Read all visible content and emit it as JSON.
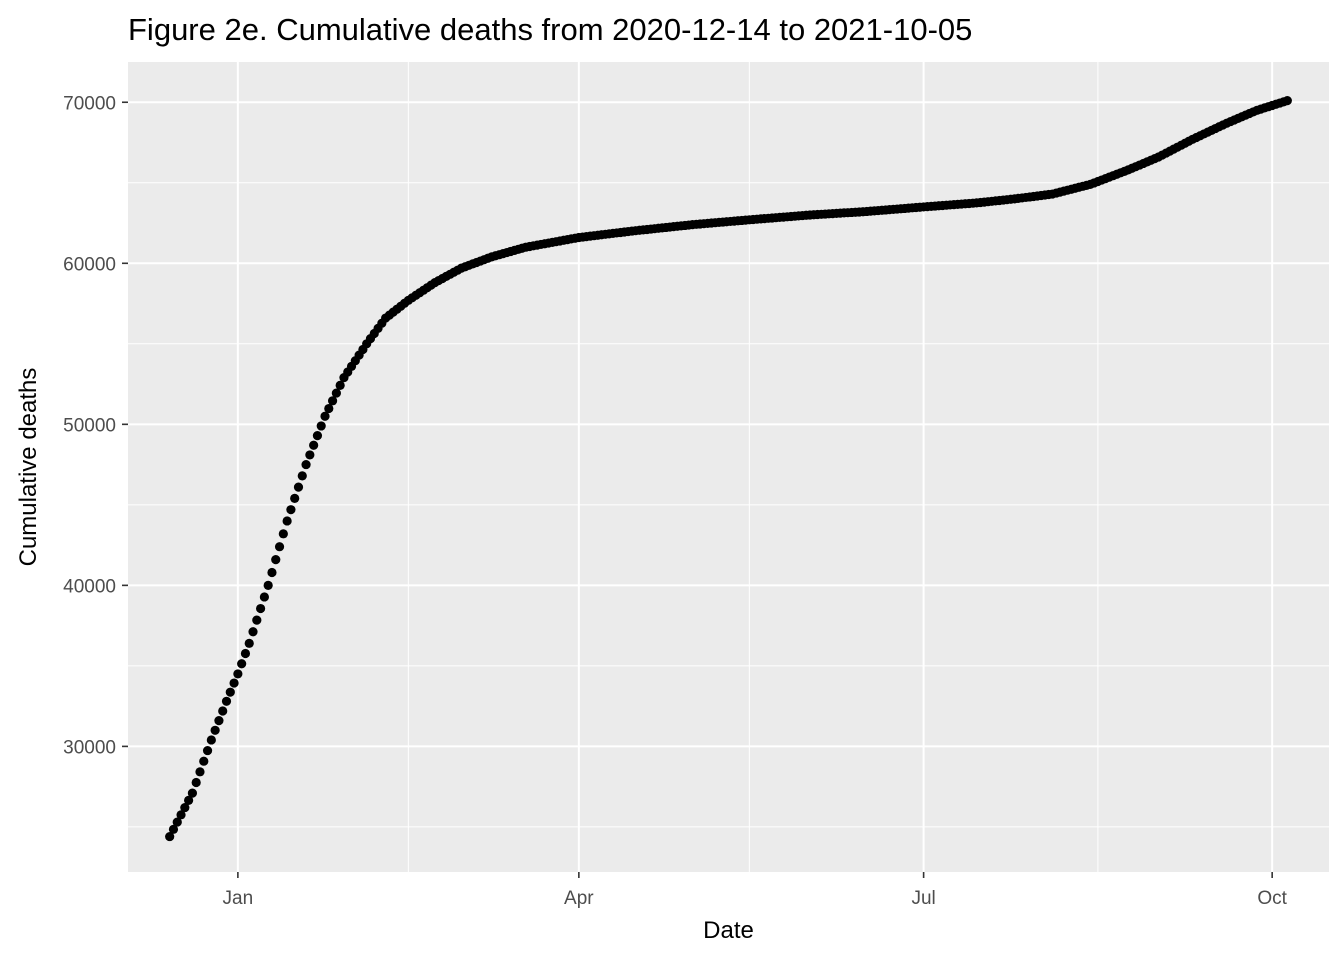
{
  "chart_data": {
    "type": "scatter",
    "title": "Figure 2e. Cumulative deaths from 2020-12-14 to 2021-10-05",
    "xlabel": "Date",
    "ylabel": "Cumulative deaths",
    "x_start": "2020-12-14",
    "x_end": "2021-10-05",
    "xlim": [
      "2020-12-03",
      "2021-10-16"
    ],
    "ylim": [
      22200,
      72500
    ],
    "x_ticks": [
      {
        "date": "2021-01-01",
        "label": "Jan"
      },
      {
        "date": "2021-04-01",
        "label": "Apr"
      },
      {
        "date": "2021-07-01",
        "label": "Jul"
      },
      {
        "date": "2021-10-01",
        "label": "Oct"
      }
    ],
    "x_minor_ticks": [
      "2021-02-15",
      "2021-05-16",
      "2021-08-16"
    ],
    "y_ticks": [
      30000,
      40000,
      50000,
      60000,
      70000
    ],
    "y_minor_ticks": [
      25000,
      35000,
      45000,
      55000,
      65000
    ],
    "grid": true,
    "colors": {
      "panel": "#ebebeb",
      "grid": "#ffffff",
      "point": "#000000"
    },
    "series": [
      {
        "name": "",
        "points": [
          {
            "date": "2020-12-14",
            "y": 24400
          },
          {
            "date": "2020-12-20",
            "y": 27100
          },
          {
            "date": "2020-12-25",
            "y": 30400
          },
          {
            "date": "2020-12-29",
            "y": 32800
          },
          {
            "date": "2021-01-01",
            "y": 34500
          },
          {
            "date": "2021-01-04",
            "y": 36400
          },
          {
            "date": "2021-01-09",
            "y": 40000
          },
          {
            "date": "2021-01-14",
            "y": 44000
          },
          {
            "date": "2021-01-19",
            "y": 47500
          },
          {
            "date": "2021-01-24",
            "y": 50500
          },
          {
            "date": "2021-01-29",
            "y": 52900
          },
          {
            "date": "2021-02-04",
            "y": 55000
          },
          {
            "date": "2021-02-09",
            "y": 56600
          },
          {
            "date": "2021-02-15",
            "y": 57700
          },
          {
            "date": "2021-02-22",
            "y": 58800
          },
          {
            "date": "2021-03-01",
            "y": 59700
          },
          {
            "date": "2021-03-09",
            "y": 60400
          },
          {
            "date": "2021-03-18",
            "y": 61000
          },
          {
            "date": "2021-04-01",
            "y": 61600
          },
          {
            "date": "2021-04-15",
            "y": 62000
          },
          {
            "date": "2021-05-01",
            "y": 62400
          },
          {
            "date": "2021-05-16",
            "y": 62700
          },
          {
            "date": "2021-06-01",
            "y": 63000
          },
          {
            "date": "2021-06-15",
            "y": 63200
          },
          {
            "date": "2021-07-01",
            "y": 63500
          },
          {
            "date": "2021-07-15",
            "y": 63750
          },
          {
            "date": "2021-07-25",
            "y": 64000
          },
          {
            "date": "2021-08-04",
            "y": 64300
          },
          {
            "date": "2021-08-14",
            "y": 64900
          },
          {
            "date": "2021-08-24",
            "y": 65800
          },
          {
            "date": "2021-09-01",
            "y": 66600
          },
          {
            "date": "2021-09-10",
            "y": 67700
          },
          {
            "date": "2021-09-19",
            "y": 68700
          },
          {
            "date": "2021-09-27",
            "y": 69500
          },
          {
            "date": "2021-10-05",
            "y": 70100
          }
        ]
      }
    ]
  }
}
